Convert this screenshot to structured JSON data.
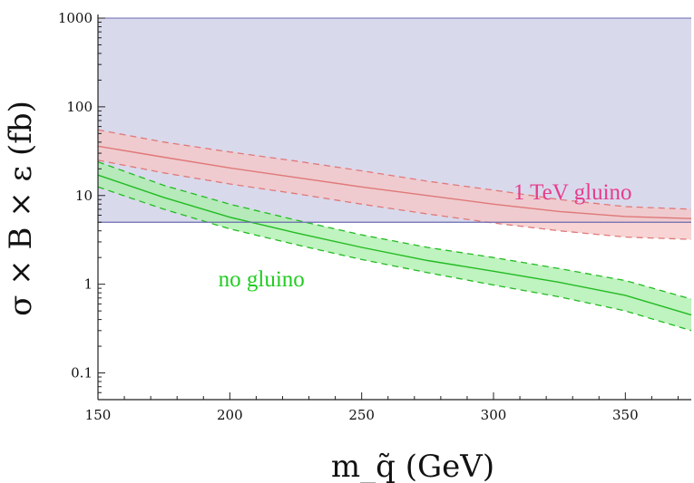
{
  "chart_data": {
    "type": "line",
    "title": "",
    "xlabel": "m_q̃ (GeV)",
    "ylabel": "σ × B × ε (fb)",
    "yscale": "log",
    "xlim": [
      150,
      375
    ],
    "ylim": [
      0.05,
      1000
    ],
    "grid": false,
    "legend": "none",
    "x_ticks": [
      150,
      200,
      250,
      300,
      350
    ],
    "x_tick_labels": [
      "150",
      "200",
      "250",
      "300",
      "350"
    ],
    "y_ticks": [
      0.1,
      1,
      10,
      100,
      1000
    ],
    "y_tick_labels": [
      "0.1",
      "1",
      "10",
      "100",
      "1000"
    ],
    "excluded_region": {
      "y_low": 5,
      "y_high": 1000,
      "fill": "#d9d9ec",
      "edge": "#6b6bb0"
    },
    "bands": [
      {
        "id": "gluino",
        "label": "1 TeV gluino",
        "label_color": "#e63c8c",
        "line_color": "#e07878",
        "fill": "#f6c6c6",
        "x": [
          150,
          175,
          200,
          225,
          250,
          275,
          300,
          325,
          350,
          375
        ],
        "central": [
          36,
          27,
          20.5,
          16,
          12.5,
          10,
          8,
          6.6,
          5.8,
          5.5
        ],
        "lower": [
          25,
          18,
          13.5,
          10.5,
          8,
          6.2,
          4.9,
          4,
          3.4,
          3.2
        ],
        "upper": [
          55,
          40,
          31,
          24.5,
          19,
          14.5,
          11.5,
          9,
          7.5,
          7
        ]
      },
      {
        "id": "no-gluino",
        "label": "no gluino",
        "label_color": "#22cc22",
        "line_color": "#22bb22",
        "fill": "#a9efa9",
        "x": [
          150,
          175,
          200,
          225,
          250,
          275,
          300,
          325,
          350,
          375
        ],
        "central": [
          17,
          9.5,
          5.7,
          3.8,
          2.6,
          1.85,
          1.4,
          1.05,
          0.75,
          0.45
        ],
        "lower": [
          12.5,
          7,
          4.2,
          2.8,
          1.9,
          1.35,
          0.98,
          0.72,
          0.5,
          0.3
        ],
        "upper": [
          24,
          13,
          8,
          5.3,
          3.6,
          2.6,
          2,
          1.5,
          1.1,
          0.68
        ]
      }
    ],
    "annotations": [
      {
        "text": "1 TeV gluino",
        "x": 330,
        "y": 9,
        "color": "#e63c8c"
      },
      {
        "text": "no gluino",
        "x": 212,
        "y": 0.95,
        "color": "#22cc22"
      }
    ]
  }
}
